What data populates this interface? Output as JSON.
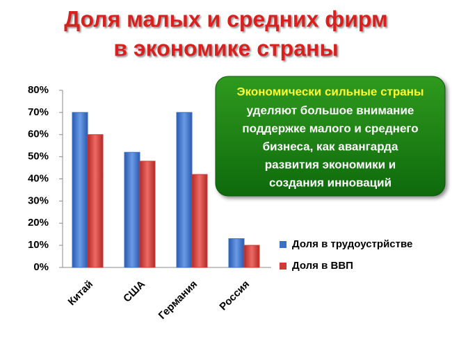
{
  "chart_data": {
    "type": "bar",
    "title": [
      "Доля малых и средних фирм",
      "в экономике страны"
    ],
    "categories": [
      "Китай",
      "США",
      "Германия",
      "Россия"
    ],
    "series": [
      {
        "name": "Доля в трудоустрйстве",
        "color": "#3a6fc4",
        "values": [
          70,
          52,
          70,
          13
        ]
      },
      {
        "name": "Доля в ВВП",
        "color": "#d03a36",
        "values": [
          60,
          48,
          42,
          10
        ]
      }
    ],
    "ylim": [
      0,
      80
    ],
    "yticks": [
      {
        "value": 0,
        "label": "0%"
      },
      {
        "value": 10,
        "label": "10%"
      },
      {
        "value": 20,
        "label": "20%"
      },
      {
        "value": 30,
        "label": "30%"
      },
      {
        "value": 40,
        "label": "40%"
      },
      {
        "value": 50,
        "label": "50%"
      },
      {
        "value": 60,
        "label": "60%"
      },
      {
        "value": 70,
        "label": "70%"
      },
      {
        "value": 80,
        "label": "80%"
      }
    ],
    "grid": false,
    "legend": "right",
    "annotation": {
      "highlight": "Экономически сильные страны",
      "lines": [
        "уделяют большое внимание",
        "поддержке малого и среднего",
        "бизнеса, как авангарда",
        "развития экономики и",
        "создания инноваций"
      ]
    }
  }
}
